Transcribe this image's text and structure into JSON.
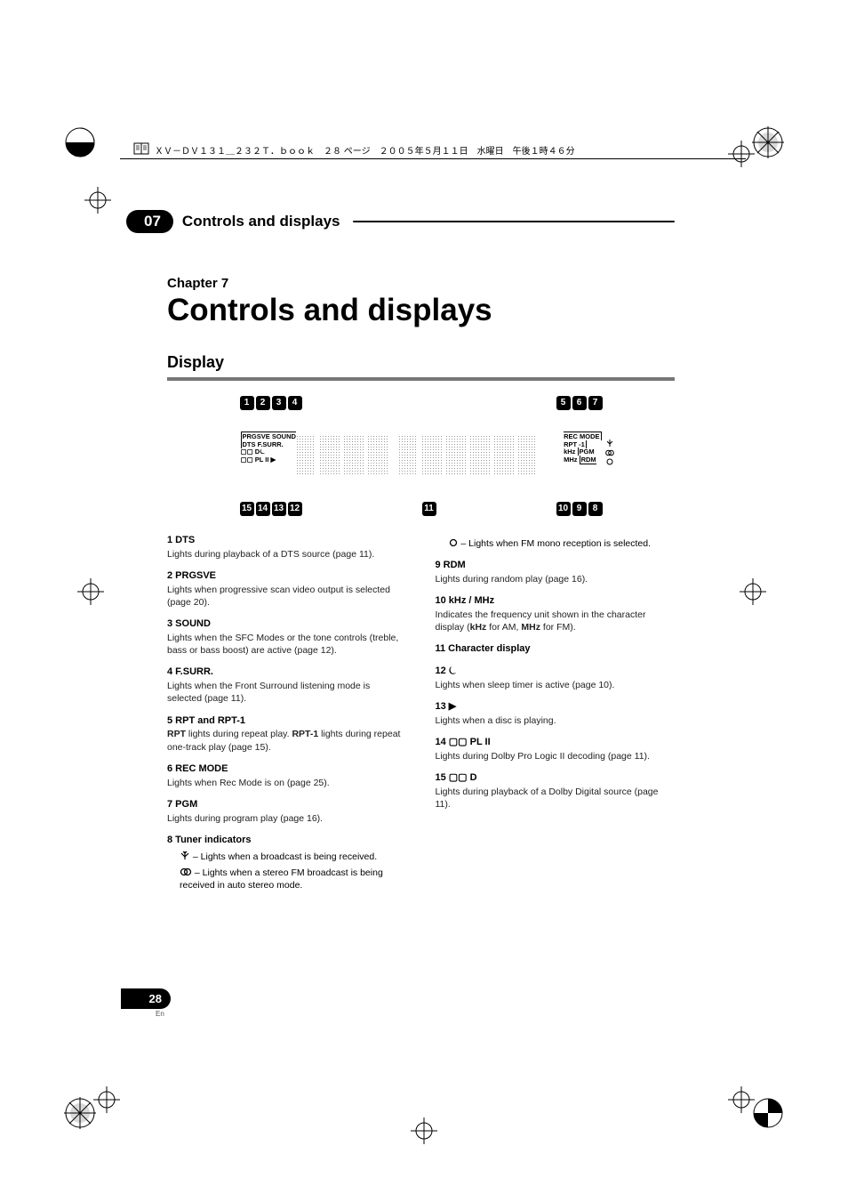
{
  "doc_header": "ＸＶ－ＤＶ１３１＿２３２Ｔ．ｂｏｏｋ　２８ ページ　２００５年５月１１日　水曜日　午後１時４６分",
  "section": {
    "number": "07",
    "title": "Controls and displays"
  },
  "chapter_label": "Chapter 7",
  "chapter_title": "Controls and displays",
  "display_heading": "Display",
  "page_number": "28",
  "page_lang": "En",
  "diagram": {
    "top_callouts_left": [
      "1",
      "2",
      "3",
      "4"
    ],
    "top_callouts_right": [
      "5",
      "6",
      "7"
    ],
    "bottom_callouts_left": [
      "15",
      "14",
      "13",
      "12"
    ],
    "bottom_callouts_mid": [
      "11"
    ],
    "bottom_callouts_right": [
      "10",
      "9",
      "8"
    ],
    "left_labels": {
      "row1": "PRGSVE SOUND",
      "row2": "DTS F.SURR.",
      "row3_a": "▢▢ D",
      "row3_b": "⏾",
      "row4": "▢▢ PL II ▶"
    },
    "right_labels": {
      "row1": "REC MODE",
      "row2": "RPT -1",
      "row3a": "kHz",
      "row3b": "PGM",
      "row4a": "MHz",
      "row4b": "RDM"
    }
  },
  "left_items": [
    {
      "head": "1   DTS",
      "body": "Lights during playback of a DTS source (page 11)."
    },
    {
      "head": "2   PRGSVE",
      "body": "Lights when progressive scan video output is selected (page 20)."
    },
    {
      "head": "3   SOUND",
      "body": "Lights when the SFC Modes or the tone controls (treble, bass or bass boost) are active (page 12)."
    },
    {
      "head": "4   F.SURR.",
      "body": "Lights when the Front Surround listening mode is selected (page 11)."
    },
    {
      "head": "5   RPT and RPT-1",
      "body_html": "<span class='bold'>RPT</span> lights during repeat play. <span class='bold'>RPT-1</span> lights during repeat one-track play (page 15)."
    },
    {
      "head": "6   REC MODE",
      "body": "Lights when Rec Mode is on (page 25)."
    },
    {
      "head": "7   PGM",
      "body": "Lights during program play (page 16)."
    },
    {
      "head": "8   Tuner indicators",
      "subs": [
        {
          "icon": "antenna",
          "text": " – Lights when a broadcast is being received."
        },
        {
          "icon": "stereo",
          "text": " – Lights when a stereo FM broadcast is being received in auto stereo mode."
        }
      ]
    }
  ],
  "right_items": [
    {
      "sub_only": true,
      "icon": "mono",
      "text": " – Lights when FM mono reception is selected."
    },
    {
      "head": "9   RDM",
      "body": "Lights during random play (page 16)."
    },
    {
      "head": "10  kHz / MHz",
      "body_html": "Indicates the frequency unit shown in the character display (<span class='bold'>kHz</span> for AM, <span class='bold'>MHz</span> for FM)."
    },
    {
      "head": "11  Character display",
      "body": ""
    },
    {
      "head": "12  ⏾",
      "body": "Lights when sleep timer is active (page 10)."
    },
    {
      "head": "13  ▶",
      "body": "Lights when a disc is playing."
    },
    {
      "head": "14  ▢▢ PL II",
      "body": "Lights during Dolby Pro Logic II decoding (page 11)."
    },
    {
      "head": "15  ▢▢ D",
      "body": "Lights during playback of a Dolby Digital source (page 11)."
    }
  ]
}
